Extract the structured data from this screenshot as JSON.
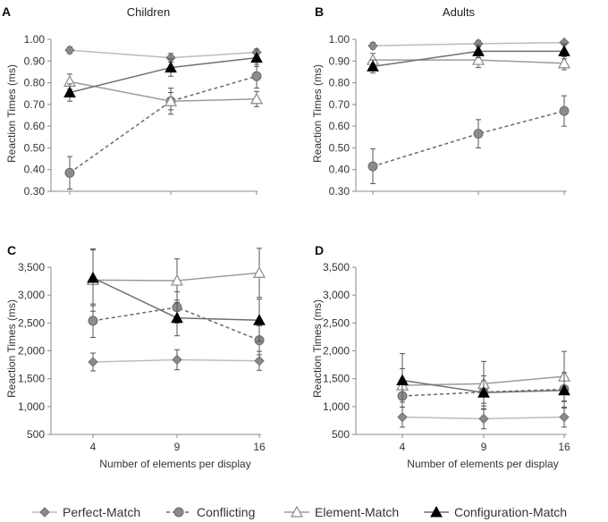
{
  "chart_data": [
    {
      "type": "line",
      "panel_letter": "A",
      "title": "Children",
      "xlabel": "",
      "ylabel": "Reaction Times (ms)",
      "categories": [
        "4",
        "9",
        "16"
      ],
      "ylim": [
        0.3,
        1.0
      ],
      "yticks": [
        1.0,
        0.9,
        0.8,
        0.7,
        0.6,
        0.5,
        0.4,
        0.3
      ],
      "ytick_labels": [
        "1.00",
        "0.90",
        "0.80",
        "0.70",
        "0.60",
        "0.50",
        "0.40",
        "0.30"
      ],
      "series": [
        {
          "name": "Perfect-Match",
          "values": [
            0.95,
            0.915,
            0.94
          ],
          "errors": [
            0.015,
            0.02,
            0.01
          ]
        },
        {
          "name": "Conflicting",
          "values": [
            0.385,
            0.715,
            0.83
          ],
          "errors": [
            0.075,
            0.06,
            0.055
          ]
        },
        {
          "name": "Element-Match",
          "values": [
            0.805,
            0.715,
            0.725
          ],
          "errors": [
            0.035,
            0.04,
            0.035
          ]
        },
        {
          "name": "Configuration-Match",
          "values": [
            0.755,
            0.87,
            0.915
          ],
          "errors": [
            0.04,
            0.04,
            0.04
          ]
        }
      ]
    },
    {
      "type": "line",
      "panel_letter": "B",
      "title": "Adults",
      "xlabel": "",
      "ylabel": "Reaction Times (ms)",
      "categories": [
        "4",
        "9",
        "16"
      ],
      "ylim": [
        0.3,
        1.0
      ],
      "yticks": [
        1.0,
        0.9,
        0.8,
        0.7,
        0.6,
        0.5,
        0.4,
        0.3
      ],
      "ytick_labels": [
        "1.00",
        "0.90",
        "0.80",
        "0.70",
        "0.60",
        "0.50",
        "0.40",
        "0.30"
      ],
      "series": [
        {
          "name": "Perfect-Match",
          "values": [
            0.97,
            0.98,
            0.985
          ],
          "errors": [
            0.015,
            0.015,
            0.01
          ]
        },
        {
          "name": "Conflicting",
          "values": [
            0.415,
            0.565,
            0.67
          ],
          "errors": [
            0.08,
            0.065,
            0.07
          ]
        },
        {
          "name": "Element-Match",
          "values": [
            0.905,
            0.905,
            0.89
          ],
          "errors": [
            0.03,
            0.035,
            0.03
          ]
        },
        {
          "name": "Configuration-Match",
          "values": [
            0.875,
            0.945,
            0.945
          ],
          "errors": [
            0.03,
            0.03,
            0.035
          ]
        }
      ]
    },
    {
      "type": "line",
      "panel_letter": "C",
      "title": "",
      "xlabel": "Number of elements per display",
      "ylabel": "Reaction Times (ms)",
      "categories": [
        "4",
        "9",
        "16"
      ],
      "ylim": [
        500,
        3500
      ],
      "yticks": [
        3500,
        3000,
        2500,
        2000,
        1500,
        1000,
        500
      ],
      "ytick_labels": [
        "3,500",
        "3,000",
        "2,500",
        "2,000",
        "1,500",
        "1,000",
        "500"
      ],
      "series": [
        {
          "name": "Perfect-Match",
          "values": [
            1800,
            1840,
            1820
          ],
          "errors": [
            160,
            180,
            170
          ]
        },
        {
          "name": "Conflicting",
          "values": [
            2540,
            2780,
            2190
          ],
          "errors": [
            300,
            280,
            260
          ]
        },
        {
          "name": "Element-Match",
          "values": [
            3270,
            3260,
            3400
          ],
          "errors": [
            560,
            390,
            440
          ]
        },
        {
          "name": "Configuration-Match",
          "values": [
            3310,
            2590,
            2550
          ],
          "errors": [
            500,
            320,
            380
          ]
        }
      ]
    },
    {
      "type": "line",
      "panel_letter": "D",
      "title": "",
      "xlabel": "Number of elements per display",
      "ylabel": "Reaction Times (ms)",
      "categories": [
        "4",
        "9",
        "16"
      ],
      "ylim": [
        500,
        3500
      ],
      "yticks": [
        3500,
        3000,
        2500,
        2000,
        1500,
        1000,
        500
      ],
      "ytick_labels": [
        "3,500",
        "3,000",
        "2,500",
        "2,000",
        "1,500",
        "1,000",
        "500"
      ],
      "series": [
        {
          "name": "Perfect-Match",
          "values": [
            810,
            780,
            810
          ],
          "errors": [
            180,
            180,
            180
          ]
        },
        {
          "name": "Conflicting",
          "values": [
            1190,
            1260,
            1310
          ],
          "errors": [
            200,
            200,
            210
          ]
        },
        {
          "name": "Element-Match",
          "values": [
            1380,
            1410,
            1540
          ],
          "errors": [
            300,
            400,
            450
          ]
        },
        {
          "name": "Configuration-Match",
          "values": [
            1470,
            1250,
            1290
          ],
          "errors": [
            480,
            300,
            320
          ]
        }
      ]
    }
  ],
  "legend": {
    "items": [
      {
        "label": "Perfect-Match",
        "marker": "diamond"
      },
      {
        "label": "Conflicting",
        "marker": "circle"
      },
      {
        "label": "Element-Match",
        "marker": "triangle-open"
      },
      {
        "label": "Configuration-Match",
        "marker": "triangle-filled"
      }
    ]
  },
  "series_styles": {
    "Perfect-Match": {
      "line": "#bdbdbd",
      "fill": "#8a8a8a",
      "stroke": "#6f6f6f",
      "dash": "",
      "marker": "diamond"
    },
    "Conflicting": {
      "line": "#6a6a6a",
      "fill": "#8c8c8c",
      "stroke": "#6a6a6a",
      "dash": "4,3",
      "marker": "circle"
    },
    "Element-Match": {
      "line": "#9b9b9b",
      "fill": "#ffffff",
      "stroke": "#8a8a8a",
      "dash": "",
      "marker": "triangle-open"
    },
    "Configuration-Match": {
      "line": "#6f6f6f",
      "fill": "#000000",
      "stroke": "#000000",
      "dash": "",
      "marker": "triangle-filled"
    }
  }
}
